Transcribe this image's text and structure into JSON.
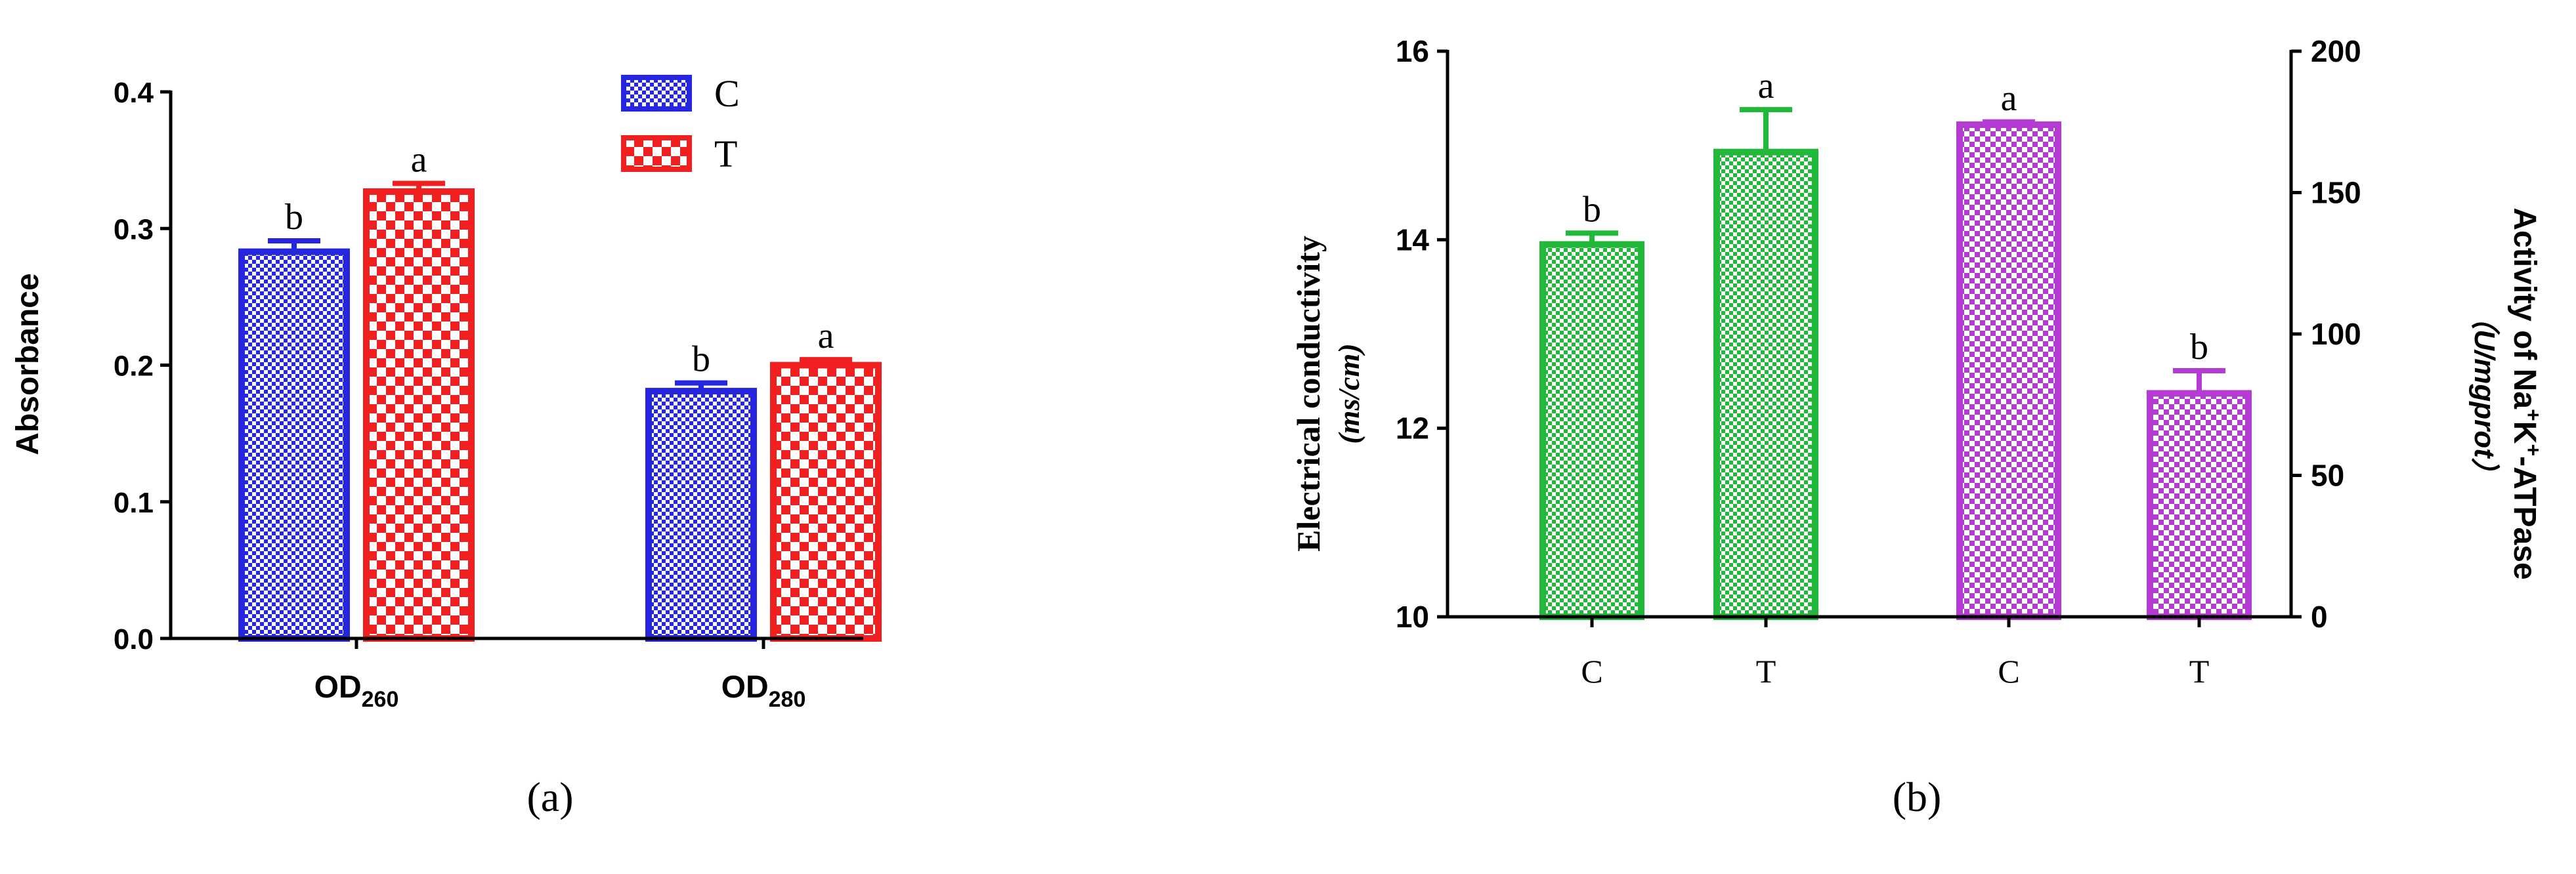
{
  "colors": {
    "blue": "#2626e0",
    "red": "#f02020",
    "green": "#22b83a",
    "purple": "#b43cd2"
  },
  "chart_data": [
    {
      "type": "bar",
      "panel_label": "(a)",
      "categories": [
        "OD260",
        "OD280"
      ],
      "category_labels": [
        {
          "main": "OD",
          "sub": "260"
        },
        {
          "main": "OD",
          "sub": "280"
        }
      ],
      "series": [
        {
          "name": "C",
          "color": "#2626e0",
          "values": [
            0.283,
            0.181
          ],
          "errors": [
            0.008,
            0.006
          ],
          "letters": [
            "b",
            "b"
          ]
        },
        {
          "name": "T",
          "color": "#f02020",
          "values": [
            0.327,
            0.2
          ],
          "errors": [
            0.006,
            0.004
          ],
          "letters": [
            "a",
            "a"
          ]
        }
      ],
      "ylabel": "Absorbance",
      "ylim": [
        0,
        0.4
      ],
      "yticks": [
        "0.0",
        "0.1",
        "0.2",
        "0.3",
        "0.4"
      ],
      "legend": "top-right"
    },
    {
      "type": "bar",
      "panel_label": "(b)",
      "categories": [
        "C",
        "T",
        "C",
        "T"
      ],
      "left_axis": {
        "label": "Electrical conductivity",
        "unit": "(ms/cm)",
        "ylim": [
          10,
          16
        ],
        "yticks": [
          "10",
          "12",
          "14",
          "16"
        ]
      },
      "right_axis": {
        "label_parts": [
          "Activity of Na",
          "+",
          "K",
          "+",
          "-ATPase"
        ],
        "unit": "（U/mgprot）",
        "ylim": [
          0,
          200
        ],
        "yticks": [
          "0",
          "50",
          "100",
          "150",
          "200"
        ]
      },
      "bars": [
        {
          "category": "C",
          "axis": "left",
          "value": 13.95,
          "error": 0.12,
          "letter": "b",
          "color": "#22b83a"
        },
        {
          "category": "T",
          "axis": "left",
          "value": 14.93,
          "error": 0.45,
          "letter": "a",
          "color": "#22b83a"
        },
        {
          "category": "C",
          "axis": "right",
          "value": 174,
          "error": 1,
          "letter": "a",
          "color": "#b43cd2"
        },
        {
          "category": "T",
          "axis": "right",
          "value": 79,
          "error": 8,
          "letter": "b",
          "color": "#b43cd2"
        }
      ]
    }
  ]
}
